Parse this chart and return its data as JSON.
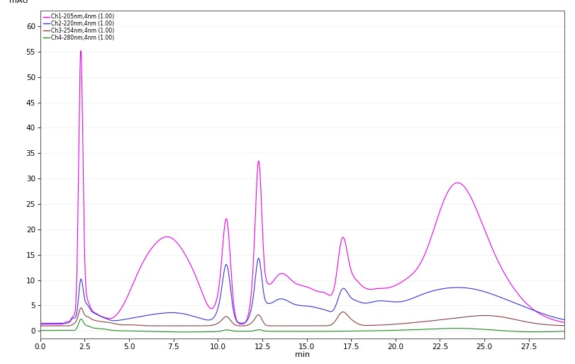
{
  "ylabel": "mAU",
  "xlabel": "min",
  "xlim": [
    0.0,
    29.5
  ],
  "ylim": [
    -1.5,
    63
  ],
  "yticks": [
    0,
    5,
    10,
    15,
    20,
    25,
    30,
    35,
    40,
    45,
    50,
    55,
    60
  ],
  "xticks": [
    0.0,
    2.5,
    5.0,
    7.5,
    10.0,
    12.5,
    15.0,
    17.5,
    20.0,
    22.5,
    25.0,
    27.5
  ],
  "background_color": "#ffffff",
  "legend_colors": [
    "#ff00ff",
    "#3333ff",
    "#8B4040",
    "#228B22"
  ],
  "legend_labels": [
    "Ch1-205nm,4nm (1.00)",
    "Ch2-220nm,4nm (1.00)",
    "Ch3-254nm,4nm (1.00)",
    "Ch4-280nm,4nm (1.00)"
  ],
  "ch_colors": [
    "#ee00ee",
    "#3333dd",
    "#8B4040",
    "#228B22"
  ],
  "linewidths": [
    0.8,
    0.8,
    0.8,
    0.8
  ]
}
